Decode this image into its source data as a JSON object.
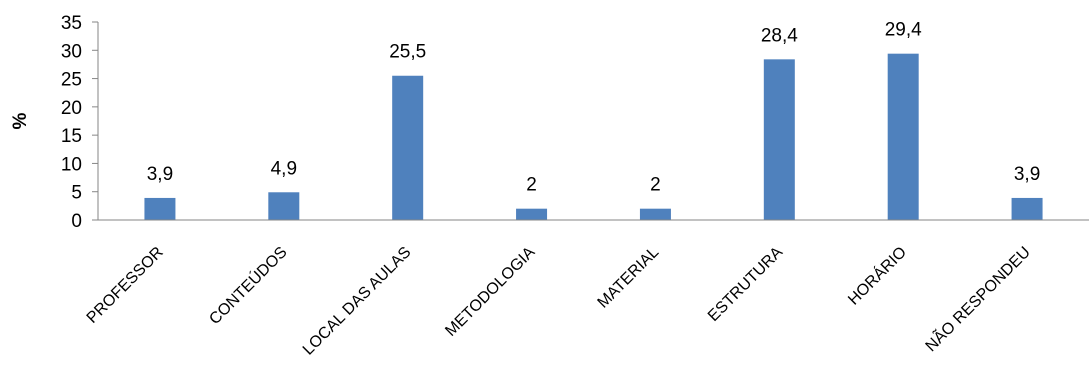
{
  "chart_data": {
    "type": "bar",
    "title": "",
    "xlabel": "",
    "ylabel": "%",
    "ylim": [
      0,
      35
    ],
    "yticks": [
      0,
      5,
      10,
      15,
      20,
      25,
      30,
      35
    ],
    "grid": false,
    "legend": "none",
    "categories": [
      "PROFESSOR",
      "CONTEÚDOS",
      "LOCAL DAS AULAS",
      "METODOLOGIA",
      "MATERIAL",
      "ESTRUTURA",
      "HORÁRIO",
      "NÃO RESPONDEU"
    ],
    "values": [
      3.9,
      4.9,
      25.5,
      2,
      2,
      28.4,
      29.4,
      3.9
    ],
    "data_labels": [
      "3,9",
      "4,9",
      "25,5",
      "2",
      "2",
      "28,4",
      "29,4",
      "3,9"
    ],
    "bar_color": "#4F81BD",
    "axis_color": "#868686"
  }
}
